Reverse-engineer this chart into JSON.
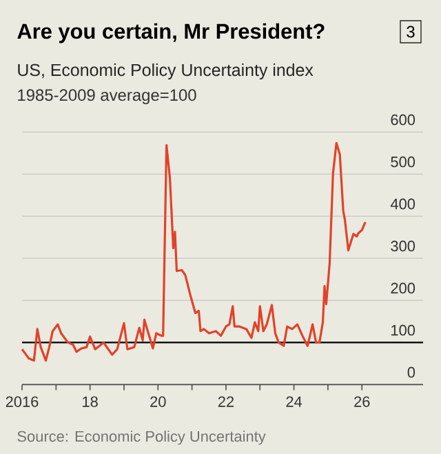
{
  "chart_data": {
    "type": "line",
    "title": "Are you certain, Mr President?",
    "subtitle": "US, Economic Policy Uncertainty index",
    "annotations": [
      "3",
      "1985-2009 average=100",
      "Source: Economic Policy Uncertainty"
    ],
    "x": [
      2016.0,
      2016.2,
      2016.35,
      2016.45,
      2016.55,
      2016.7,
      2016.8,
      2016.9,
      2017.05,
      2017.15,
      2017.35,
      2017.5,
      2017.6,
      2017.75,
      2017.9,
      2018.0,
      2018.15,
      2018.4,
      2018.65,
      2018.8,
      2019.0,
      2019.1,
      2019.3,
      2019.45,
      2019.55,
      2019.6,
      2019.85,
      2019.95,
      2020.1,
      2020.15,
      2020.25,
      2020.35,
      2020.45,
      2020.5,
      2020.55,
      2020.7,
      2020.8,
      2020.95,
      2021.1,
      2021.2,
      2021.25,
      2021.35,
      2021.5,
      2021.7,
      2021.85,
      2022.0,
      2022.1,
      2022.2,
      2022.25,
      2022.4,
      2022.6,
      2022.75,
      2022.85,
      2022.95,
      2023.0,
      2023.1,
      2023.2,
      2023.35,
      2023.45,
      2023.55,
      2023.7,
      2023.8,
      2023.95,
      2024.1,
      2024.25,
      2024.4,
      2024.55,
      2024.65,
      2024.75,
      2024.85,
      2024.9,
      2024.95,
      2025.05,
      2025.15,
      2025.25,
      2025.35,
      2025.45,
      2025.5,
      2025.6,
      2025.75,
      2025.85,
      2025.9,
      2026.0,
      2026.1
    ],
    "series": [
      {
        "color": "#e3412a",
        "values": [
          84,
          62,
          57,
          132,
          89,
          57,
          89,
          127,
          143,
          122,
          100,
          95,
          78,
          86,
          89,
          114,
          84,
          100,
          71,
          84,
          146,
          84,
          89,
          135,
          105,
          154,
          86,
          122,
          116,
          116,
          569,
          491,
          324,
          363,
          270,
          272,
          261,
          213,
          170,
          175,
          127,
          132,
          122,
          127,
          116,
          138,
          143,
          186,
          138,
          138,
          132,
          111,
          148,
          127,
          186,
          127,
          143,
          189,
          122,
          100,
          92,
          138,
          132,
          143,
          116,
          92,
          143,
          100,
          100,
          148,
          234,
          191,
          288,
          502,
          574,
          547,
          413,
          391,
          319,
          358,
          352,
          360,
          367,
          386
        ]
      }
    ],
    "xlim": [
      2016,
      2027.8
    ],
    "ylim": [
      0,
      600
    ],
    "xticks": [
      2016,
      {
        "value": 2017,
        "label": null
      },
      {
        "value": 2018,
        "label": "18"
      },
      {
        "value": 2019,
        "label": null
      },
      {
        "value": 2020,
        "label": "20"
      },
      {
        "value": 2021,
        "label": null
      },
      {
        "value": 2022,
        "label": "22"
      },
      {
        "value": 2023,
        "label": null
      },
      {
        "value": 2024,
        "label": "24"
      },
      {
        "value": 2025,
        "label": null
      },
      {
        "value": 2026,
        "label": "26"
      }
    ],
    "yticks": [
      0,
      100,
      200,
      300,
      400,
      500,
      600
    ],
    "grid": "y",
    "ref_lines": [
      {
        "axis": "y",
        "value": 100,
        "color": "#000000"
      }
    ]
  }
}
